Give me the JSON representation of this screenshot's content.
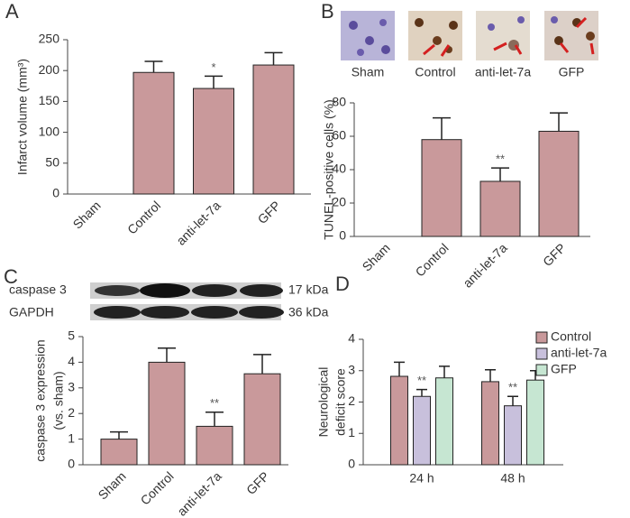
{
  "chart_data": [
    {
      "type": "bar",
      "panel": "A",
      "y_label": "Infarct volume (mm³)",
      "categories": [
        "Sham",
        "Control",
        "anti-let-7a",
        "GFP"
      ],
      "values": [
        0,
        197,
        171,
        209
      ],
      "errors": [
        null,
        18,
        20,
        20
      ],
      "significance": [
        null,
        null,
        "*",
        null
      ],
      "color": "#c9999b",
      "ylim": [
        0,
        250
      ],
      "yticks": [
        0,
        50,
        100,
        150,
        200,
        250
      ]
    },
    {
      "type": "bar",
      "panel": "B",
      "image_labels": [
        "Sham",
        "Control",
        "anti-let-7a",
        "GFP"
      ],
      "y_label": "TUNEL-positive cells (%)",
      "categories": [
        "Sham",
        "Control",
        "anti-let-7a",
        "GFP"
      ],
      "values": [
        0,
        58,
        33,
        63
      ],
      "errors": [
        null,
        13,
        8,
        11
      ],
      "significance": [
        null,
        null,
        "**",
        null
      ],
      "color": "#c9999b",
      "ylim": [
        0,
        80
      ],
      "yticks": [
        0,
        20,
        40,
        60,
        80
      ]
    },
    {
      "type": "bar",
      "panel": "C",
      "blot": [
        {
          "label": "caspase 3",
          "size": "17 kDa"
        },
        {
          "label": "GAPDH",
          "size": "36 kDa"
        }
      ],
      "y_label": [
        "caspase 3 expression",
        "(vs. sham)"
      ],
      "categories": [
        "Sham",
        "Control",
        "anti-let-7a",
        "GFP"
      ],
      "values": [
        1,
        4,
        1.5,
        3.55
      ],
      "errors": [
        0.28,
        0.55,
        0.55,
        0.75
      ],
      "significance": [
        null,
        null,
        "**",
        null
      ],
      "color": "#c9999b",
      "ylim": [
        0,
        5
      ],
      "yticks": [
        0,
        1,
        2,
        3,
        4,
        5
      ]
    },
    {
      "type": "grouped_bar",
      "panel": "D",
      "y_label": [
        "Neurological",
        "deficit score"
      ],
      "categories": [
        "24 h",
        "48 h"
      ],
      "series": [
        {
          "name": "Control",
          "color": "#c9999b",
          "values": [
            2.82,
            2.65
          ],
          "errors": [
            0.45,
            0.38
          ],
          "significance": [
            null,
            null
          ]
        },
        {
          "name": "anti-let-7a",
          "color": "#c8c0dc",
          "values": [
            2.18,
            1.88
          ],
          "errors": [
            0.22,
            0.3
          ],
          "significance": [
            "**",
            "**"
          ]
        },
        {
          "name": "GFP",
          "color": "#c6e6d2",
          "values": [
            2.77,
            2.7
          ],
          "errors": [
            0.37,
            0.3
          ],
          "significance": [
            null,
            null
          ]
        }
      ],
      "ylim": [
        0,
        4
      ],
      "yticks": [
        0,
        1,
        2,
        3,
        4
      ]
    }
  ]
}
